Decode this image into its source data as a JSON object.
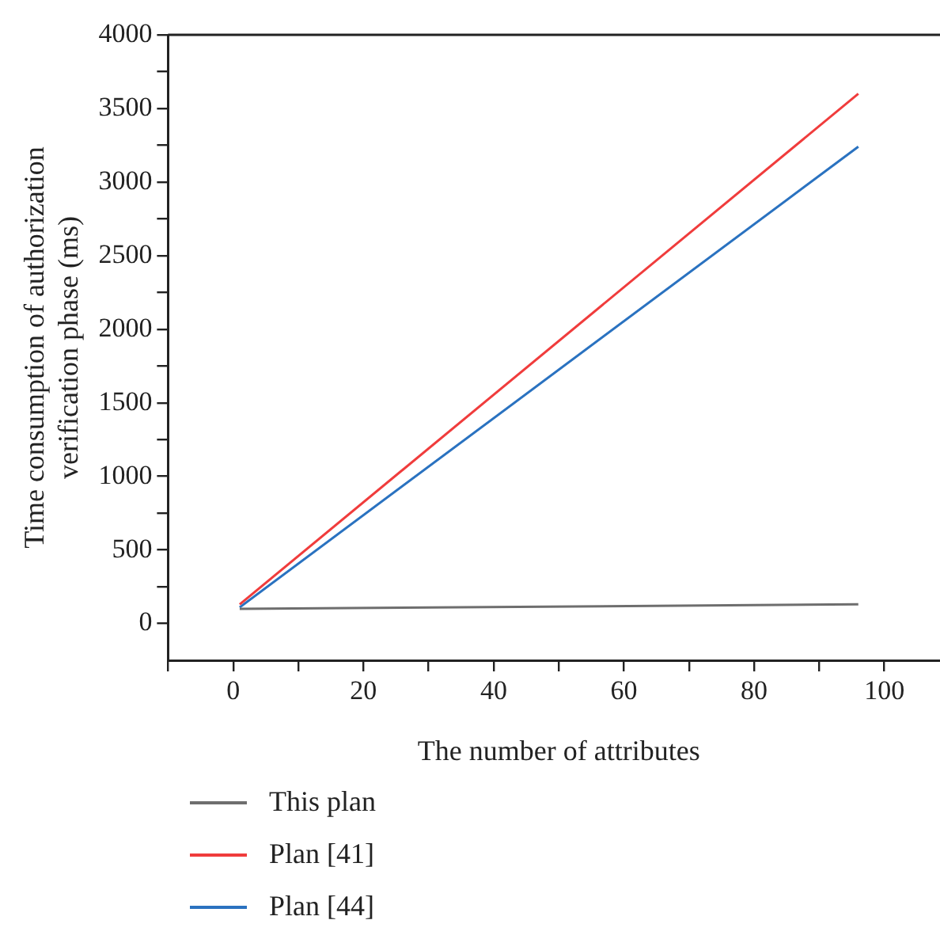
{
  "chart_data": {
    "type": "line",
    "xlabel": "The number of attributes",
    "ylabel": "Time consumption of authorization verification phase (ms)",
    "x": [
      1,
      96
    ],
    "series": [
      {
        "name": "This plan",
        "color": "#6e6e6e",
        "values": [
          100,
          130
        ]
      },
      {
        "name": "Plan [41]",
        "color": "#f03c3c",
        "values": [
          130,
          3600
        ]
      },
      {
        "name": "Plan [44]",
        "color": "#2a72c0",
        "values": [
          110,
          3240
        ]
      }
    ],
    "xlim": [
      -10,
      110
    ],
    "xticks": [
      {
        "value": -10,
        "label": null
      },
      0,
      {
        "value": 10,
        "label": null
      },
      20,
      {
        "value": 30,
        "label": null
      },
      40,
      {
        "value": 50,
        "label": null
      },
      60,
      {
        "value": 70,
        "label": null
      },
      80,
      {
        "value": 90,
        "label": null
      },
      100
    ],
    "ylim": [
      -250,
      4000
    ],
    "yticks": [
      0,
      {
        "value": 250,
        "label": null
      },
      500,
      {
        "value": 750,
        "label": null
      },
      1000,
      {
        "value": 1250,
        "label": null
      },
      1500,
      {
        "value": 1750,
        "label": null
      },
      2000,
      {
        "value": 2250,
        "label": null
      },
      2500,
      {
        "value": 2750,
        "label": null
      },
      3000,
      {
        "value": 3250,
        "label": null
      },
      3500,
      {
        "value": 3750,
        "label": null
      },
      4000
    ],
    "grid": false,
    "legend": "bottom",
    "marker": "none",
    "line_style": "solid"
  }
}
